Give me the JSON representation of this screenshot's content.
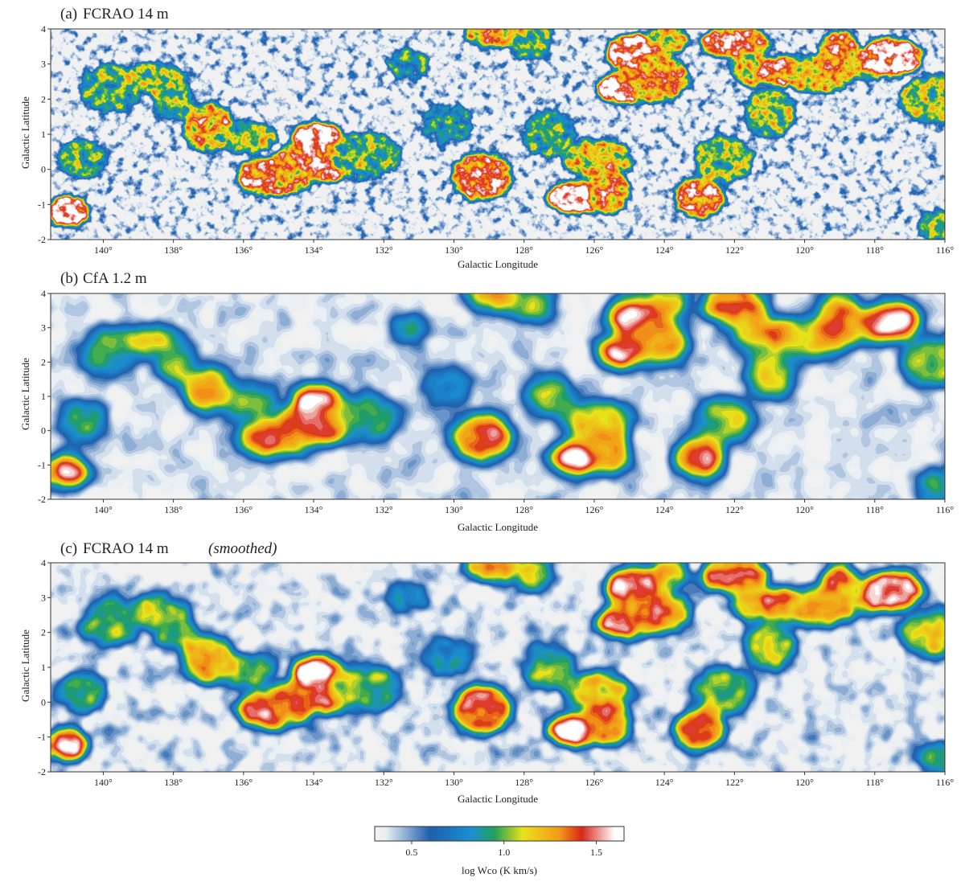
{
  "chart_data": [
    {
      "type": "heatmap",
      "panel_letter": "(a)",
      "title": "FCRAO 14 m",
      "title_italic": "",
      "xlabel": "Galactic Longitude",
      "ylabel": "Galactic Latitude",
      "xlim": [
        141.5,
        116
      ],
      "ylim": [
        -2,
        4
      ],
      "x_ticks": [
        "140°",
        "138°",
        "136°",
        "134°",
        "132°",
        "130°",
        "128°",
        "126°",
        "124°",
        "122°",
        "120°",
        "118°",
        "116°"
      ],
      "x_tick_values": [
        140,
        138,
        136,
        134,
        132,
        130,
        128,
        126,
        124,
        122,
        120,
        118,
        116
      ],
      "y_ticks": [
        "-2",
        "-1",
        "0",
        "1",
        "2",
        "3",
        "4"
      ],
      "y_tick_values": [
        -2,
        -1,
        0,
        1,
        2,
        3,
        4
      ],
      "smoothing": "none (full resolution, noisy)"
    },
    {
      "type": "heatmap",
      "panel_letter": "(b)",
      "title": "CfA 1.2 m",
      "title_italic": "",
      "xlabel": "Galactic Longitude",
      "ylabel": "Galactic Latitude",
      "xlim": [
        141.5,
        116
      ],
      "ylim": [
        -2,
        4
      ],
      "x_ticks": [
        "140°",
        "138°",
        "136°",
        "134°",
        "132°",
        "130°",
        "128°",
        "126°",
        "124°",
        "122°",
        "120°",
        "118°",
        "116°"
      ],
      "x_tick_values": [
        140,
        138,
        136,
        134,
        132,
        130,
        128,
        126,
        124,
        122,
        120,
        118,
        116
      ],
      "y_ticks": [
        "-2",
        "-1",
        "0",
        "1",
        "2",
        "3",
        "4"
      ],
      "y_tick_values": [
        -2,
        -1,
        0,
        1,
        2,
        3,
        4
      ],
      "smoothing": "low resolution"
    },
    {
      "type": "heatmap",
      "panel_letter": "(c)",
      "title": "FCRAO 14 m",
      "title_italic": "(smoothed)",
      "xlabel": "Galactic Longitude",
      "ylabel": "Galactic Latitude",
      "xlim": [
        141.5,
        116
      ],
      "ylim": [
        -2,
        4
      ],
      "x_ticks": [
        "140°",
        "138°",
        "136°",
        "134°",
        "132°",
        "130°",
        "128°",
        "126°",
        "124°",
        "122°",
        "120°",
        "118°",
        "116°"
      ],
      "x_tick_values": [
        140,
        138,
        136,
        134,
        132,
        130,
        128,
        126,
        124,
        122,
        120,
        118,
        116
      ],
      "y_ticks": [
        "-2",
        "-1",
        "0",
        "1",
        "2",
        "3",
        "4"
      ],
      "y_tick_values": [
        -2,
        -1,
        0,
        1,
        2,
        3,
        4
      ],
      "smoothing": "smoothed"
    }
  ],
  "emission_features": [
    {
      "l": 141.0,
      "b": -1.2,
      "level": 1.6
    },
    {
      "l": 140.6,
      "b": 0.3,
      "level": 1.0
    },
    {
      "l": 139.8,
      "b": 2.3,
      "level": 1.0
    },
    {
      "l": 138.6,
      "b": 2.6,
      "level": 1.1
    },
    {
      "l": 138.0,
      "b": 2.0,
      "level": 1.05
    },
    {
      "l": 137.0,
      "b": 1.2,
      "level": 1.3
    },
    {
      "l": 135.9,
      "b": 0.9,
      "level": 1.1
    },
    {
      "l": 135.2,
      "b": -0.2,
      "level": 1.45
    },
    {
      "l": 134.6,
      "b": 0.0,
      "level": 1.35
    },
    {
      "l": 133.9,
      "b": 0.9,
      "level": 1.65
    },
    {
      "l": 133.6,
      "b": 0.2,
      "level": 1.5
    },
    {
      "l": 132.5,
      "b": 0.4,
      "level": 1.0
    },
    {
      "l": 131.3,
      "b": 3.0,
      "level": 0.9
    },
    {
      "l": 130.2,
      "b": 1.3,
      "level": 0.9
    },
    {
      "l": 129.2,
      "b": -0.2,
      "level": 1.45
    },
    {
      "l": 128.7,
      "b": 3.9,
      "level": 1.3
    },
    {
      "l": 127.8,
      "b": 3.7,
      "level": 1.05
    },
    {
      "l": 127.3,
      "b": 1.0,
      "level": 1.0
    },
    {
      "l": 126.5,
      "b": -0.8,
      "level": 1.65
    },
    {
      "l": 125.9,
      "b": 0.3,
      "level": 1.2
    },
    {
      "l": 125.6,
      "b": -0.6,
      "level": 1.35
    },
    {
      "l": 125.2,
      "b": 2.3,
      "level": 1.65
    },
    {
      "l": 124.8,
      "b": 3.3,
      "level": 1.6
    },
    {
      "l": 124.3,
      "b": 2.6,
      "level": 1.35
    },
    {
      "l": 123.9,
      "b": 3.7,
      "level": 1.2
    },
    {
      "l": 123.0,
      "b": -0.8,
      "level": 1.45
    },
    {
      "l": 122.3,
      "b": 0.3,
      "level": 1.05
    },
    {
      "l": 122.0,
      "b": 3.6,
      "level": 1.5
    },
    {
      "l": 121.5,
      "b": 2.9,
      "level": 1.2
    },
    {
      "l": 121.0,
      "b": 1.6,
      "level": 1.1
    },
    {
      "l": 120.5,
      "b": 2.8,
      "level": 1.5
    },
    {
      "l": 119.6,
      "b": 2.7,
      "level": 1.2
    },
    {
      "l": 119.0,
      "b": 3.3,
      "level": 1.4
    },
    {
      "l": 118.2,
      "b": 3.0,
      "level": 1.2
    },
    {
      "l": 117.5,
      "b": 3.2,
      "level": 1.6
    },
    {
      "l": 116.3,
      "b": 2.0,
      "level": 1.1
    },
    {
      "l": 116.2,
      "b": -1.6,
      "level": 1.0
    }
  ],
  "colorbar": {
    "label": "log Wco (K km/s)",
    "ticks": [
      "0.5",
      "1.0",
      "1.5"
    ],
    "tick_values": [
      0.5,
      1.0,
      1.5
    ],
    "range": [
      0.3,
      1.65
    ],
    "colors": [
      "#f2f2f2",
      "#e8eef4",
      "#1f5fae",
      "#1a8fd0",
      "#23a05a",
      "#e8e21a",
      "#f39a18",
      "#d8261a",
      "#ffffff"
    ],
    "color_stops": [
      0.3,
      0.36,
      0.6,
      0.82,
      0.95,
      1.1,
      1.3,
      1.42,
      1.6
    ]
  }
}
